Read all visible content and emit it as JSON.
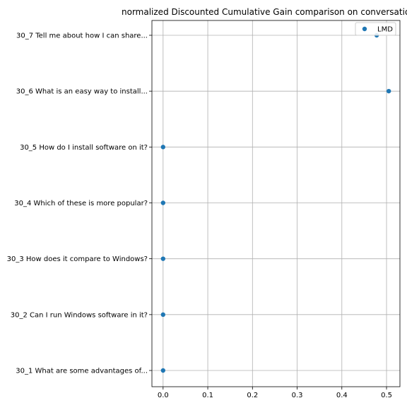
{
  "colors": {
    "marker": "#1f77b4",
    "grid": "#b0b0b0",
    "axis": "#000000",
    "legend_border": "#cccccc",
    "background": "#ffffff"
  },
  "chart_data": {
    "type": "scatter",
    "title": "normalized Discounted Cumulative Gain comparison on conversation",
    "xlabel": "",
    "ylabel": "",
    "xlim": [
      -0.025,
      0.53
    ],
    "x_ticks": [
      0.0,
      0.1,
      0.2,
      0.3,
      0.4,
      0.5
    ],
    "x_tick_labels": [
      "0.0",
      "0.1",
      "0.2",
      "0.3",
      "0.4",
      "0.5"
    ],
    "categories": [
      "30_1 What are some advantages of...",
      "30_2 Can I run Windows software in it?",
      "30_3 How does it compare to Windows?",
      "30_4 Which of these is more popular?",
      "30_5 How do I install software on it?",
      "30_6 What is an easy way to install...",
      "30_7 Tell me about how I can share..."
    ],
    "grid": true,
    "legend_position": "top-right",
    "series": [
      {
        "name": "LMD",
        "marker": "circle",
        "values": [
          0.0,
          0.0,
          0.0,
          0.0,
          0.0,
          0.505,
          0.478
        ]
      }
    ]
  }
}
